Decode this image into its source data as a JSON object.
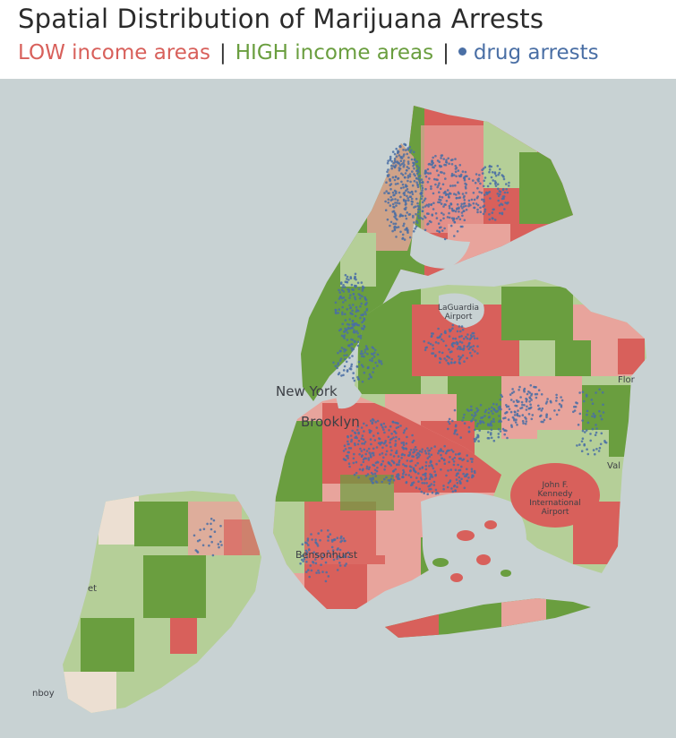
{
  "header": {
    "title": "Spatial Distribution of Marijuana Arrests"
  },
  "legend": {
    "items": [
      {
        "label": "LOW income areas",
        "color": "#d8605b"
      },
      {
        "label": "HIGH income areas",
        "color": "#6a9e3f"
      },
      {
        "label": "drug arrests",
        "color": "#4a6fa5",
        "marker": "dot-icon"
      }
    ],
    "separator": "|"
  },
  "colors": {
    "water": "#c8d2d3",
    "low_income": "#d8605b",
    "low_income_light": "#e8a49c",
    "high_income": "#6a9e3f",
    "high_income_light": "#b5cf98",
    "neutral": "#ecdfd2",
    "arrests": "#4a6fa5"
  },
  "map": {
    "labels": {
      "laguardia": [
        "LaGuardia",
        "Airport"
      ],
      "jfk": [
        "John F.",
        "Kennedy",
        "International",
        "Airport"
      ],
      "new_york": "New York",
      "brooklyn": "Brooklyn",
      "bensonhurst": "Bensonhurst",
      "floral": "Flor",
      "valley": "Val",
      "staten_et": "et",
      "staten_boy": "nboy"
    }
  }
}
